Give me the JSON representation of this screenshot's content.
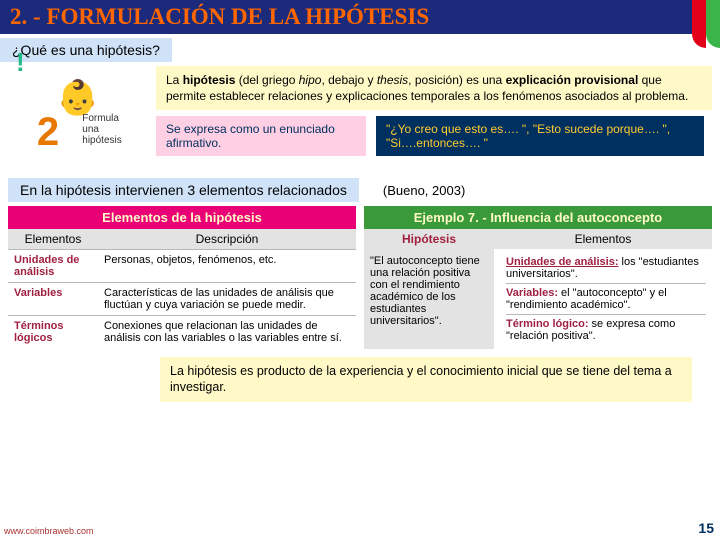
{
  "title": "2. - FORMULACIÓN DE LA HIPÓTESIS",
  "subtitle": "¿Qué es una hipótesis?",
  "icon_label1": "Formula",
  "icon_label2": "una",
  "icon_label3": "hipótesis",
  "definition_html": "La <b>hipótesis</b> (del griego <i>hipo</i>, debajo y <i>thesis</i>, posición) es una <b>explicación provisional</b> que permite establecer relaciones y explicaciones temporales a los fenómenos asociados al problema.",
  "pink_text": "Se expresa como un enunciado afirmativo.",
  "dblue_text": "\"¿Yo creo que esto es…. \", \"Esto sucede porque…. \", \"Si….entonces…. \"",
  "interline": "En la hipótesis intervienen 3 elementos relacionados",
  "cite": "(Bueno, 2003)",
  "left": {
    "header": "Elementos de la hipótesis",
    "sub_col1": "Elementos",
    "sub_col2": "Descripción",
    "rows": [
      {
        "k": "Unidades de análisis",
        "v": "Personas, objetos, fenómenos, etc."
      },
      {
        "k": "Variables",
        "v": "Características de las unidades de análisis que fluctúan y cuya variación se puede medir."
      },
      {
        "k": "Términos lógicos",
        "v": "Conexiones que relacionan las unidades de análisis con las variables o las variables entre sí."
      }
    ]
  },
  "right": {
    "header": "Ejemplo 7. - Influencia del autoconcepto",
    "sub_col1": "Hipótesis",
    "sub_col2": "Elementos",
    "hyp": "\"El autoconcepto tiene una relación positiva con el rendimiento académico de los estudiantes universitarios\".",
    "items": [
      {
        "k": "Unidades de análisis:",
        "v": " los \"estudiantes universitarios\"."
      },
      {
        "k": "Variables:",
        "v": " el \"autoconcepto\" y el \"rendimiento académico\"."
      },
      {
        "k": "Término lógico:",
        "v": " se expresa como \"relación positiva\"."
      }
    ]
  },
  "bottom": "La hipótesis es producto de la experiencia y el conocimiento inicial que se tiene del tema a investigar.",
  "url": "www.coimbraweb.com",
  "page": "15",
  "colors": {
    "title_bg": "#1b2a7a",
    "title_fg": "#ff6600",
    "panel_bg": "#fff9c8",
    "blue_bg": "#cfe2f8",
    "mag": "#e90077",
    "green": "#3a9a3a",
    "key": "#a02040",
    "darkblue": "#003060"
  }
}
